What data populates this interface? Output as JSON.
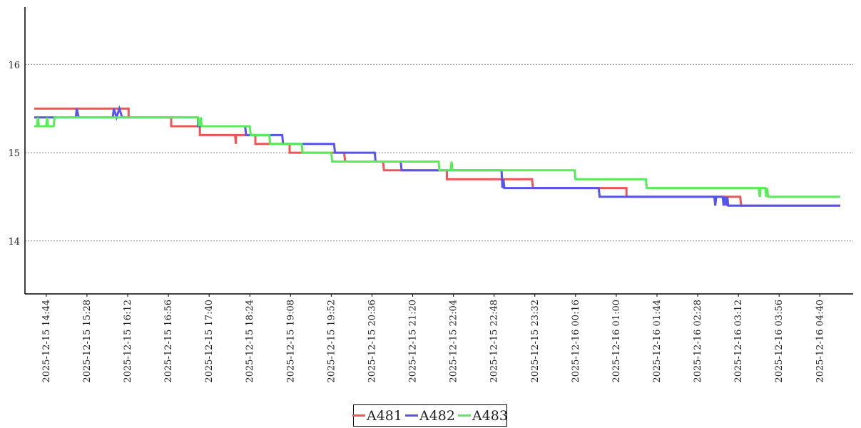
{
  "chart_data": {
    "type": "line",
    "title": "",
    "xlabel": "",
    "ylabel": "",
    "ylim": [
      13.4,
      16.65
    ],
    "yticks": [
      14,
      15,
      16
    ],
    "grid": "horizontal dotted",
    "legend_position": "bottom-center",
    "x_start": "2025-12-15 14:21",
    "x_end": "2025-12-16 05:16",
    "xticks": [
      "2025-12-15 14:44",
      "2025-12-15 15:28",
      "2025-12-15 16:12",
      "2025-12-15 16:56",
      "2025-12-15 17:40",
      "2025-12-15 18:24",
      "2025-12-15 19:08",
      "2025-12-15 19:52",
      "2025-12-15 20:36",
      "2025-12-15 21:20",
      "2025-12-15 22:04",
      "2025-12-15 22:48",
      "2025-12-15 23:32",
      "2025-12-16 00:16",
      "2025-12-16 01:00",
      "2025-12-16 01:44",
      "2025-12-16 02:28",
      "2025-12-16 03:12",
      "2025-12-16 03:56",
      "2025-12-16 04:40"
    ],
    "series": [
      {
        "name": "A481",
        "color": "#ee5555",
        "points": [
          [
            "2025-12-15 14:31",
            15.5
          ],
          [
            "2025-12-15 16:13",
            15.5
          ],
          [
            "2025-12-15 16:13",
            15.4
          ],
          [
            "2025-12-15 16:59",
            15.4
          ],
          [
            "2025-12-15 16:59",
            15.3
          ],
          [
            "2025-12-15 17:30",
            15.3
          ],
          [
            "2025-12-15 17:30",
            15.2
          ],
          [
            "2025-12-15 18:08",
            15.2
          ],
          [
            "2025-12-15 18:09",
            15.1
          ],
          [
            "2025-12-15 18:09",
            15.2
          ],
          [
            "2025-12-15 18:30",
            15.2
          ],
          [
            "2025-12-15 18:30",
            15.1
          ],
          [
            "2025-12-15 19:07",
            15.1
          ],
          [
            "2025-12-15 19:07",
            15.0
          ],
          [
            "2025-12-15 20:06",
            15.0
          ],
          [
            "2025-12-15 20:07",
            14.9
          ],
          [
            "2025-12-15 20:48",
            14.9
          ],
          [
            "2025-12-15 20:49",
            14.8
          ],
          [
            "2025-12-15 21:57",
            14.8
          ],
          [
            "2025-12-15 21:57",
            14.7
          ],
          [
            "2025-12-15 23:29",
            14.7
          ],
          [
            "2025-12-15 23:30",
            14.6
          ],
          [
            "2025-12-16 01:11",
            14.6
          ],
          [
            "2025-12-16 01:11",
            14.5
          ],
          [
            "2025-12-16 03:14",
            14.5
          ],
          [
            "2025-12-16 03:15",
            14.4
          ],
          [
            "2025-12-16 05:02",
            14.4
          ]
        ]
      },
      {
        "name": "A482",
        "color": "#5555ee",
        "points": [
          [
            "2025-12-15 14:31",
            15.4
          ],
          [
            "2025-12-15 15:16",
            15.4
          ],
          [
            "2025-12-15 15:17",
            15.5
          ],
          [
            "2025-12-15 15:19",
            15.4
          ],
          [
            "2025-12-15 15:56",
            15.4
          ],
          [
            "2025-12-15 15:57",
            15.5
          ],
          [
            "2025-12-15 16:00",
            15.4
          ],
          [
            "2025-12-15 16:03",
            15.5
          ],
          [
            "2025-12-15 16:06",
            15.4
          ],
          [
            "2025-12-15 17:28",
            15.4
          ],
          [
            "2025-12-15 17:28",
            15.3
          ],
          [
            "2025-12-15 18:19",
            15.3
          ],
          [
            "2025-12-15 18:20",
            15.2
          ],
          [
            "2025-12-15 18:59",
            15.2
          ],
          [
            "2025-12-15 19:00",
            15.1
          ],
          [
            "2025-12-15 19:55",
            15.1
          ],
          [
            "2025-12-15 19:56",
            15.0
          ],
          [
            "2025-12-15 20:39",
            15.0
          ],
          [
            "2025-12-15 20:40",
            14.9
          ],
          [
            "2025-12-15 21:07",
            14.9
          ],
          [
            "2025-12-15 21:08",
            14.8
          ],
          [
            "2025-12-15 22:56",
            14.8
          ],
          [
            "2025-12-15 22:57",
            14.6
          ],
          [
            "2025-12-15 22:58",
            14.7
          ],
          [
            "2025-12-15 22:59",
            14.6
          ],
          [
            "2025-12-16 00:41",
            14.6
          ],
          [
            "2025-12-16 00:42",
            14.5
          ],
          [
            "2025-12-16 02:46",
            14.5
          ],
          [
            "2025-12-16 02:47",
            14.4
          ],
          [
            "2025-12-16 02:48",
            14.5
          ],
          [
            "2025-12-16 02:55",
            14.5
          ],
          [
            "2025-12-16 02:56",
            14.4
          ],
          [
            "2025-12-16 02:57",
            14.5
          ],
          [
            "2025-12-16 02:59",
            14.4
          ],
          [
            "2025-12-16 03:00",
            14.5
          ],
          [
            "2025-12-16 03:01",
            14.4
          ],
          [
            "2025-12-16 05:02",
            14.4
          ]
        ]
      },
      {
        "name": "A483",
        "color": "#55ee55",
        "points": [
          [
            "2025-12-15 14:31",
            15.3
          ],
          [
            "2025-12-15 14:34",
            15.3
          ],
          [
            "2025-12-15 14:35",
            15.4
          ],
          [
            "2025-12-15 14:36",
            15.3
          ],
          [
            "2025-12-15 14:44",
            15.3
          ],
          [
            "2025-12-15 14:45",
            15.4
          ],
          [
            "2025-12-15 14:46",
            15.3
          ],
          [
            "2025-12-15 14:52",
            15.3
          ],
          [
            "2025-12-15 14:53",
            15.4
          ],
          [
            "2025-12-15 17:28",
            15.4
          ],
          [
            "2025-12-15 17:29",
            15.3
          ],
          [
            "2025-12-15 17:31",
            15.4
          ],
          [
            "2025-12-15 17:32",
            15.3
          ],
          [
            "2025-12-15 18:24",
            15.3
          ],
          [
            "2025-12-15 18:25",
            15.2
          ],
          [
            "2025-12-15 18:45",
            15.2
          ],
          [
            "2025-12-15 18:46",
            15.1
          ],
          [
            "2025-12-15 19:20",
            15.1
          ],
          [
            "2025-12-15 19:21",
            15.0
          ],
          [
            "2025-12-15 19:52",
            15.0
          ],
          [
            "2025-12-15 19:53",
            14.9
          ],
          [
            "2025-12-15 21:48",
            14.9
          ],
          [
            "2025-12-15 21:49",
            14.8
          ],
          [
            "2025-12-15 22:01",
            14.8
          ],
          [
            "2025-12-15 22:02",
            14.9
          ],
          [
            "2025-12-15 22:03",
            14.8
          ],
          [
            "2025-12-16 00:15",
            14.8
          ],
          [
            "2025-12-16 00:16",
            14.7
          ],
          [
            "2025-12-16 01:32",
            14.7
          ],
          [
            "2025-12-16 01:33",
            14.6
          ],
          [
            "2025-12-16 03:34",
            14.6
          ],
          [
            "2025-12-16 03:35",
            14.5
          ],
          [
            "2025-12-16 03:36",
            14.6
          ],
          [
            "2025-12-16 03:41",
            14.6
          ],
          [
            "2025-12-16 03:42",
            14.5
          ],
          [
            "2025-12-16 03:43",
            14.6
          ],
          [
            "2025-12-16 03:44",
            14.5
          ],
          [
            "2025-12-16 05:02",
            14.5
          ]
        ]
      }
    ]
  }
}
